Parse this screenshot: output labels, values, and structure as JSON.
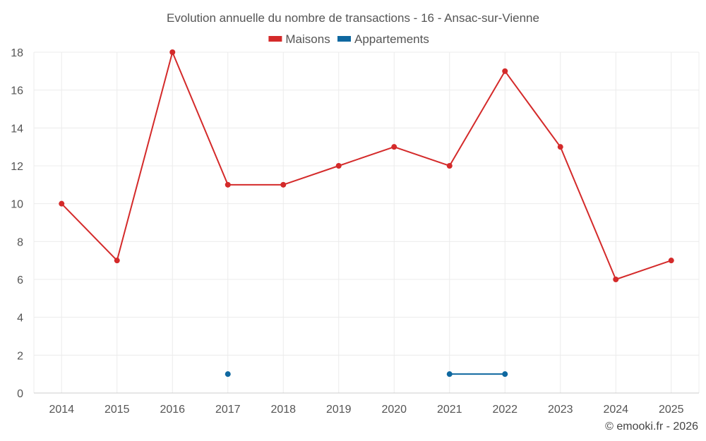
{
  "chart_data": {
    "type": "line",
    "title": "Evolution annuelle du nombre de transactions - 16 - Ansac-sur-Vienne",
    "categories": [
      "2014",
      "2015",
      "2016",
      "2017",
      "2018",
      "2019",
      "2020",
      "2021",
      "2022",
      "2023",
      "2024",
      "2025"
    ],
    "series": [
      {
        "name": "Maisons",
        "color": "#d42a2a",
        "values": [
          10,
          7,
          18,
          11,
          11,
          12,
          13,
          12,
          17,
          13,
          6,
          7
        ]
      },
      {
        "name": "Appartements",
        "color": "#0f68a0",
        "values": [
          null,
          null,
          null,
          1,
          null,
          null,
          null,
          1,
          1,
          null,
          null,
          null
        ]
      }
    ],
    "ylim": [
      0,
      18
    ],
    "yticks": [
      0,
      2,
      4,
      6,
      8,
      10,
      12,
      14,
      16,
      18
    ],
    "grid": true,
    "legend": "top-center"
  },
  "credit": "© emooki.fr - 2026"
}
